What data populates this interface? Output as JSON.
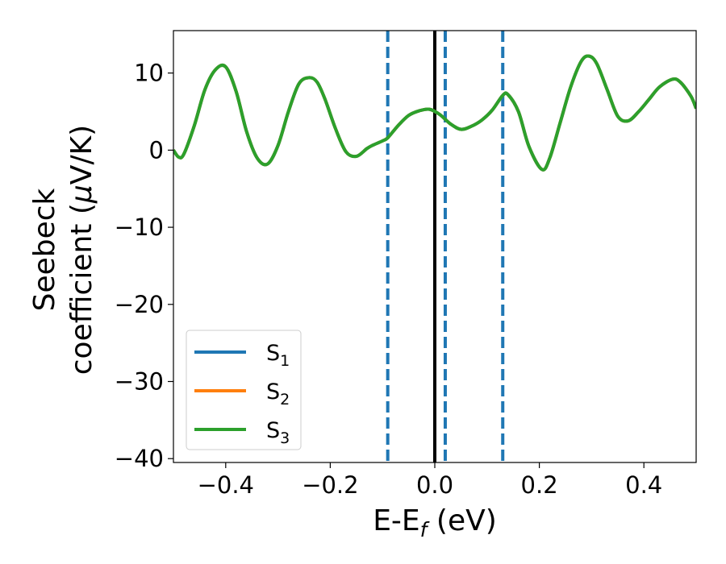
{
  "chart_data": {
    "type": "line",
    "xlabel": "E-E",
    "xlabel_sub": "f",
    "xlabel_unit": " (eV)",
    "ylabel_line1": "Seebeck",
    "ylabel_line2": "coefficient  (",
    "ylabel_mu": "μ",
    "ylabel_unit": "V/K)",
    "xlim": [
      -0.5,
      0.5
    ],
    "ylim": [
      -40.5,
      15.5
    ],
    "x_ticks": [
      -0.4,
      -0.2,
      0.0,
      0.2,
      0.4
    ],
    "x_tick_labels": [
      "−0.4",
      "−0.2",
      "0.0",
      "0.2",
      "0.4"
    ],
    "y_ticks": [
      -40,
      -30,
      -20,
      -10,
      0,
      10
    ],
    "y_tick_labels": [
      "−40",
      "−30",
      "−20",
      "−10",
      "0",
      "10"
    ],
    "grid": false,
    "legend_position": "lower-left",
    "vertical_lines": [
      {
        "x": -0.09,
        "style": "dashed",
        "color": "#1f77b4"
      },
      {
        "x": 0.0,
        "style": "solid",
        "color": "#000000"
      },
      {
        "x": 0.02,
        "style": "dashed",
        "color": "#1f77b4"
      },
      {
        "x": 0.13,
        "style": "dashed",
        "color": "#1f77b4"
      }
    ],
    "x": [
      -0.5,
      -0.49,
      -0.48,
      -0.46,
      -0.44,
      -0.42,
      -0.4,
      -0.38,
      -0.36,
      -0.34,
      -0.32,
      -0.3,
      -0.28,
      -0.26,
      -0.24,
      -0.225,
      -0.21,
      -0.19,
      -0.17,
      -0.15,
      -0.13,
      -0.12,
      -0.1,
      -0.09,
      -0.07,
      -0.05,
      -0.03,
      -0.01,
      0.01,
      0.03,
      0.05,
      0.07,
      0.09,
      0.11,
      0.13,
      0.14,
      0.16,
      0.18,
      0.205,
      0.22,
      0.24,
      0.26,
      0.28,
      0.295,
      0.31,
      0.33,
      0.35,
      0.37,
      0.39,
      0.41,
      0.43,
      0.455,
      0.47,
      0.49,
      0.5
    ],
    "series": [
      {
        "name": "S",
        "sub": "1",
        "color": "#1f77b4",
        "values": [
          0,
          -0.9,
          -0.5,
          3.2,
          7.8,
          10.4,
          10.8,
          7.6,
          2.4,
          -1.0,
          -1.8,
          0.6,
          5.0,
          8.6,
          9.4,
          8.8,
          6.6,
          2.8,
          -0.2,
          -0.8,
          0.2,
          0.6,
          1.2,
          1.6,
          3.2,
          4.5,
          5.1,
          5.3,
          4.6,
          3.4,
          2.7,
          3.1,
          3.9,
          5.2,
          7.1,
          7.2,
          5.0,
          0.5,
          -2.5,
          -1.0,
          3.6,
          8.2,
          11.5,
          12.2,
          11.2,
          7.8,
          4.4,
          3.8,
          5.0,
          6.6,
          8.2,
          9.2,
          8.8,
          7.0,
          5.4
        ]
      },
      {
        "name": "S",
        "sub": "2",
        "color": "#ff7f0e",
        "values": [
          0,
          -0.9,
          -0.5,
          3.2,
          7.8,
          10.4,
          10.8,
          7.6,
          2.4,
          -1.0,
          -1.8,
          0.6,
          5.0,
          8.6,
          9.4,
          8.8,
          6.6,
          2.8,
          -0.2,
          -0.8,
          0.2,
          0.6,
          1.2,
          1.6,
          3.2,
          4.5,
          5.1,
          5.3,
          4.6,
          3.4,
          2.7,
          3.1,
          3.9,
          5.2,
          7.1,
          7.2,
          5.0,
          0.5,
          -2.5,
          -1.0,
          3.6,
          8.2,
          11.5,
          12.2,
          11.2,
          7.8,
          4.4,
          3.8,
          5.0,
          6.6,
          8.2,
          9.2,
          8.8,
          7.0,
          5.4
        ]
      },
      {
        "name": "S",
        "sub": "3",
        "color": "#2ca02c",
        "values": [
          0,
          -0.9,
          -0.5,
          3.2,
          7.8,
          10.4,
          10.8,
          7.6,
          2.4,
          -1.0,
          -1.8,
          0.6,
          5.0,
          8.6,
          9.4,
          8.8,
          6.6,
          2.8,
          -0.2,
          -0.8,
          0.2,
          0.6,
          1.2,
          1.6,
          3.2,
          4.5,
          5.1,
          5.3,
          4.6,
          3.4,
          2.7,
          3.1,
          3.9,
          5.2,
          7.1,
          7.2,
          5.0,
          0.5,
          -2.5,
          -1.0,
          3.6,
          8.2,
          11.5,
          12.2,
          11.2,
          7.8,
          4.4,
          3.8,
          5.0,
          6.6,
          8.2,
          9.2,
          8.8,
          7.0,
          5.4
        ]
      }
    ]
  }
}
